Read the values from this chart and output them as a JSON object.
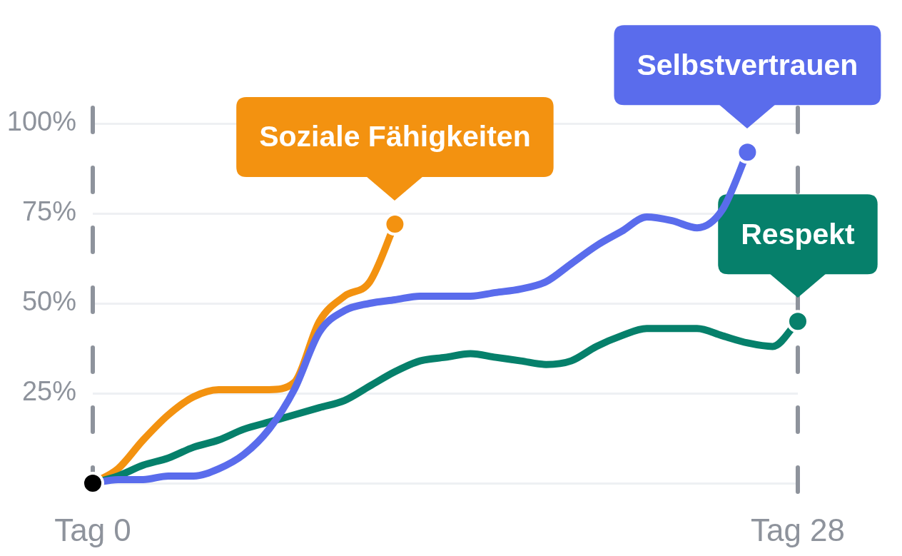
{
  "chart_data": {
    "type": "line",
    "categories": [
      "Tag 0",
      null,
      null,
      null,
      null,
      null,
      null,
      null,
      null,
      null,
      null,
      null,
      null,
      null,
      null,
      null,
      null,
      null,
      null,
      null,
      null,
      null,
      null,
      null,
      null,
      null,
      null,
      null,
      "Tag 28"
    ],
    "ylim": [
      0,
      100
    ],
    "yticks": [
      {
        "value": 0,
        "label": null
      },
      {
        "value": 25,
        "label": "25%"
      },
      {
        "value": 50,
        "label": "50%"
      },
      {
        "value": 75,
        "label": "75%"
      },
      {
        "value": 100,
        "label": "100%"
      }
    ],
    "grid": "y",
    "legend": false,
    "line_style": "solid",
    "ref_lines": [
      {
        "axis": "x",
        "value": "Tag 0",
        "color": "#8e939c",
        "line_style": "dashed"
      },
      {
        "axis": "x",
        "value": "Tag 28",
        "color": "#8e939c",
        "line_style": "dashed"
      }
    ],
    "series": [
      {
        "name": "Soziale Fähigkeiten",
        "color": "#f39210",
        "values": [
          0,
          4,
          12,
          19,
          24,
          26,
          26,
          26,
          28,
          45,
          52,
          56,
          72,
          null,
          null,
          null,
          null,
          null,
          null,
          null,
          null,
          null,
          null,
          null,
          null,
          null,
          null,
          null,
          null
        ]
      },
      {
        "name": "Respekt",
        "color": "#06806b",
        "values": [
          0,
          2,
          5,
          7,
          10,
          12,
          15,
          17,
          19,
          21,
          23,
          27,
          31,
          34,
          35,
          36,
          35,
          34,
          33,
          34,
          38,
          41,
          43,
          43,
          43,
          41,
          39,
          38,
          45
        ]
      },
      {
        "name": "Selbstvertrauen",
        "color": "#5a6cec",
        "values": [
          0,
          1,
          1,
          2,
          2,
          4,
          8,
          15,
          26,
          42,
          48,
          50,
          51,
          52,
          52,
          52,
          53,
          54,
          56,
          61,
          66,
          70,
          74,
          73,
          71,
          76,
          92,
          null,
          null
        ]
      },
      {
        "type": "scatter",
        "marker": "circle",
        "color": "#000000",
        "colors": [
          "#000000",
          null,
          null,
          null,
          null,
          null,
          null,
          null,
          null,
          null,
          null,
          null,
          "#f39210",
          null,
          null,
          null,
          null,
          null,
          null,
          null,
          null,
          null,
          null,
          null,
          null,
          null,
          "#5a6cec",
          null,
          "#06806b"
        ],
        "values": [
          0,
          null,
          null,
          null,
          null,
          null,
          null,
          null,
          null,
          null,
          null,
          null,
          72,
          null,
          null,
          null,
          null,
          null,
          null,
          null,
          null,
          null,
          null,
          null,
          null,
          null,
          92,
          null,
          45
        ]
      }
    ]
  }
}
